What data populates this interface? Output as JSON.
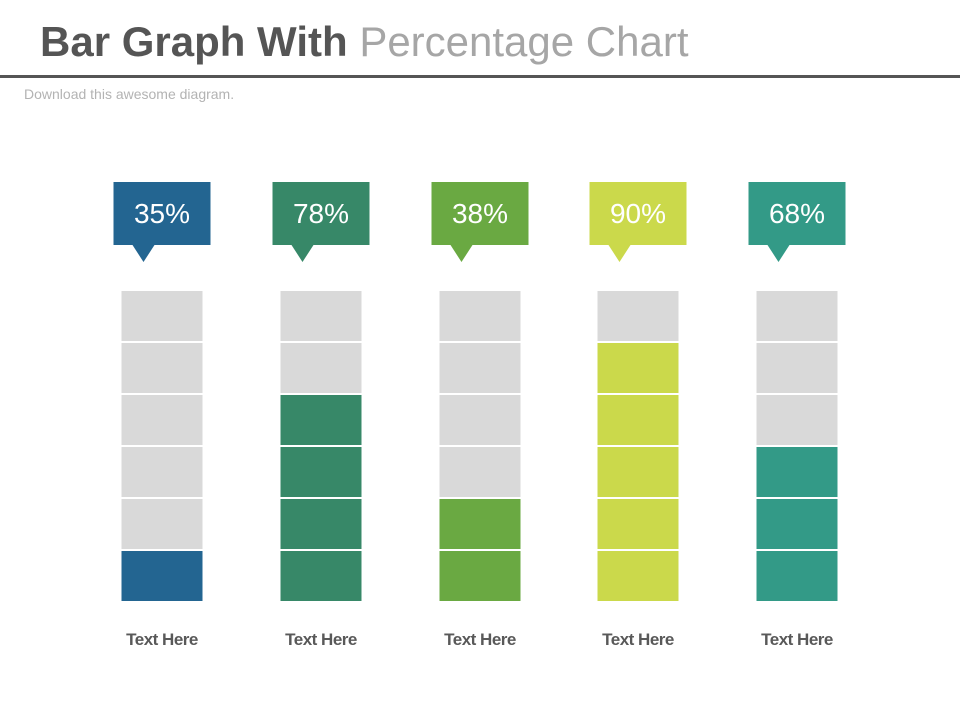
{
  "header": {
    "title_bold": "Bar Graph With",
    "title_light": "Percentage Chart",
    "subtitle": "Download this awesome diagram."
  },
  "chart_data": {
    "type": "bar",
    "categories": [
      "Text Here",
      "Text Here",
      "Text Here",
      "Text Here",
      "Text Here"
    ],
    "values": [
      35,
      78,
      38,
      90,
      68
    ],
    "value_labels": [
      "35%",
      "78%",
      "38%",
      "90%",
      "68%"
    ],
    "filled_segments": [
      1,
      4,
      2,
      5,
      3
    ],
    "total_segments": 6,
    "colors": [
      "#236591",
      "#378868",
      "#6aa942",
      "#cbd94b",
      "#339a87"
    ],
    "empty_color": "#d9d9d9",
    "title": "",
    "xlabel": "",
    "ylabel": "",
    "ylim": [
      0,
      100
    ],
    "grid": false
  }
}
